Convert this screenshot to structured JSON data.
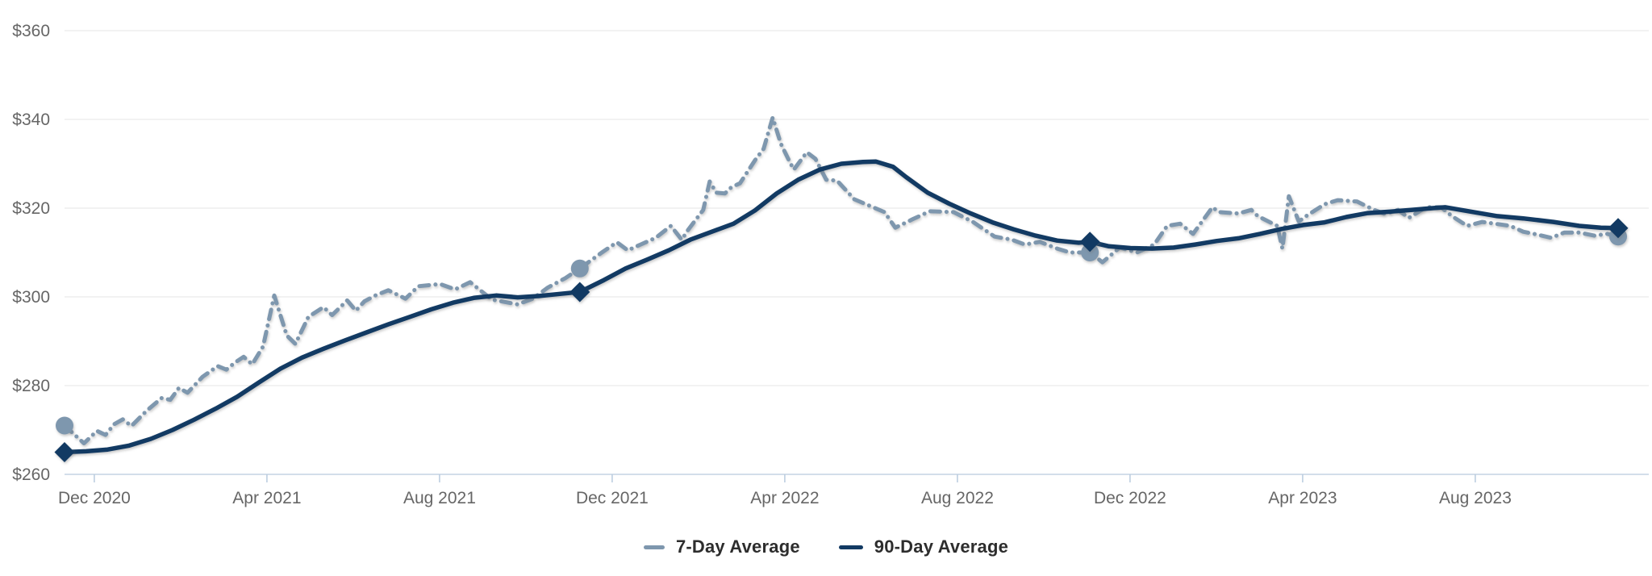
{
  "chart_data": {
    "type": "line",
    "title": "",
    "x_axis": {
      "unit": "date",
      "tick_labels": [
        "Dec 2020",
        "Apr 2021",
        "Aug 2021",
        "Dec 2021",
        "Apr 2022",
        "Aug 2022",
        "Dec 2022",
        "Apr 2023",
        "Aug 2023"
      ],
      "tick_month_offsets": [
        0.69,
        4.69,
        8.69,
        12.69,
        16.69,
        20.69,
        24.69,
        28.69,
        32.69
      ],
      "range_months": [
        0,
        36
      ]
    },
    "y_axis": {
      "unit": "USD",
      "min": 260,
      "max": 360,
      "step": 20,
      "tick_values": [
        260,
        280,
        300,
        320,
        340,
        360
      ],
      "tick_labels": [
        "$260",
        "$280",
        "$300",
        "$320",
        "$340",
        "$360"
      ]
    },
    "grid": "horizontal-only",
    "legend_position": "bottom-center",
    "colors": {
      "grid": "#e9e9e9",
      "axis": "#b9cbde",
      "tick_label": "#666666",
      "legend_text": "#2d2d2d",
      "background": "#ffffff",
      "series_7day": "#7e97ae",
      "series_90day": "#123a63"
    },
    "series": [
      {
        "name": "7-Day Average",
        "style": "dash-dot",
        "color": "#7e97ae",
        "marker": "circle",
        "marker_points": [
          [
            0,
            271.0
          ],
          [
            11.94,
            306.4
          ],
          [
            23.76,
            310.0
          ],
          [
            36,
            313.6
          ]
        ],
        "points": [
          [
            0,
            271.0
          ],
          [
            0.45,
            267.0
          ],
          [
            0.75,
            269.8
          ],
          [
            0.95,
            268.9
          ],
          [
            1.15,
            271.3
          ],
          [
            1.35,
            272.4
          ],
          [
            1.55,
            270.9
          ],
          [
            1.9,
            274.3
          ],
          [
            2.25,
            277.2
          ],
          [
            2.45,
            276.8
          ],
          [
            2.65,
            279.5
          ],
          [
            2.85,
            278.4
          ],
          [
            3.2,
            282.0
          ],
          [
            3.55,
            284.4
          ],
          [
            3.75,
            283.6
          ],
          [
            3.95,
            285.2
          ],
          [
            4.15,
            286.5
          ],
          [
            4.35,
            284.8
          ],
          [
            4.6,
            288.8
          ],
          [
            4.86,
            300.3
          ],
          [
            5.15,
            291.3
          ],
          [
            5.35,
            289.4
          ],
          [
            5.65,
            295.5
          ],
          [
            6,
            297.7
          ],
          [
            6.2,
            295.9
          ],
          [
            6.55,
            299.2
          ],
          [
            6.75,
            296.9
          ],
          [
            6.95,
            299.0
          ],
          [
            7.2,
            300.3
          ],
          [
            7.5,
            301.5
          ],
          [
            7.9,
            299.6
          ],
          [
            8.2,
            302.4
          ],
          [
            8.7,
            302.9
          ],
          [
            9.05,
            301.7
          ],
          [
            9.4,
            303.3
          ],
          [
            9.9,
            299.4
          ],
          [
            10.5,
            298.3
          ],
          [
            10.85,
            299.6
          ],
          [
            11.2,
            302.1
          ],
          [
            11.6,
            304.2
          ],
          [
            11.94,
            306.4
          ],
          [
            12.45,
            310.0
          ],
          [
            12.8,
            312.3
          ],
          [
            13.05,
            310.5
          ],
          [
            13.35,
            311.8
          ],
          [
            13.7,
            313.3
          ],
          [
            14.05,
            316.0
          ],
          [
            14.3,
            312.9
          ],
          [
            14.45,
            315.1
          ],
          [
            14.8,
            319.6
          ],
          [
            14.95,
            326.0
          ],
          [
            15.1,
            323.5
          ],
          [
            15.3,
            323.3
          ],
          [
            15.45,
            324.7
          ],
          [
            15.65,
            325.6
          ],
          [
            16,
            330.8
          ],
          [
            16.2,
            333.4
          ],
          [
            16.41,
            340.4
          ],
          [
            16.6,
            334.5
          ],
          [
            16.8,
            330.5
          ],
          [
            16.9,
            328.7
          ],
          [
            17,
            330.0
          ],
          [
            17.2,
            332.6
          ],
          [
            17.4,
            331.1
          ],
          [
            17.65,
            326.4
          ],
          [
            17.9,
            326.2
          ],
          [
            18.3,
            322.0
          ],
          [
            19,
            319.1
          ],
          [
            19.25,
            315.6
          ],
          [
            19.65,
            317.5
          ],
          [
            20.05,
            319.3
          ],
          [
            20.6,
            319.1
          ],
          [
            21.05,
            316.9
          ],
          [
            21.55,
            313.6
          ],
          [
            21.95,
            312.9
          ],
          [
            22.25,
            311.8
          ],
          [
            22.6,
            312.4
          ],
          [
            23,
            310.9
          ],
          [
            23.3,
            310.0
          ],
          [
            23.76,
            310.0
          ],
          [
            24.05,
            307.8
          ],
          [
            24.45,
            311.1
          ],
          [
            24.85,
            310.0
          ],
          [
            25.25,
            311.8
          ],
          [
            25.55,
            316.0
          ],
          [
            25.85,
            316.5
          ],
          [
            26.15,
            314.2
          ],
          [
            26.6,
            320.2
          ],
          [
            26.75,
            319.1
          ],
          [
            27.2,
            318.8
          ],
          [
            27.5,
            319.6
          ],
          [
            27.65,
            318.2
          ],
          [
            28.1,
            316.0
          ],
          [
            28.22,
            310.9
          ],
          [
            28.37,
            322.7
          ],
          [
            28.6,
            317.0
          ],
          [
            28.8,
            318.4
          ],
          [
            29.2,
            320.9
          ],
          [
            29.5,
            321.8
          ],
          [
            29.95,
            321.5
          ],
          [
            30.35,
            319.6
          ],
          [
            30.6,
            318.7
          ],
          [
            30.9,
            319.6
          ],
          [
            31.15,
            317.8
          ],
          [
            31.55,
            320.2
          ],
          [
            31.9,
            320.2
          ],
          [
            32.15,
            318.2
          ],
          [
            32.5,
            316.0
          ],
          [
            32.85,
            316.9
          ],
          [
            33.15,
            316.5
          ],
          [
            33.5,
            316.0
          ],
          [
            33.8,
            314.7
          ],
          [
            34.05,
            314.2
          ],
          [
            34.45,
            313.3
          ],
          [
            34.75,
            314.5
          ],
          [
            35.1,
            314.5
          ],
          [
            35.45,
            313.8
          ],
          [
            35.75,
            314.2
          ],
          [
            36,
            313.6
          ]
        ]
      },
      {
        "name": "90-Day Average",
        "style": "solid",
        "color": "#123a63",
        "marker": "diamond",
        "marker_points": [
          [
            0,
            265.0
          ],
          [
            11.94,
            301.1
          ],
          [
            23.76,
            312.4
          ],
          [
            36,
            315.5
          ]
        ],
        "points": [
          [
            0,
            265.0
          ],
          [
            0.5,
            265.2
          ],
          [
            1,
            265.6
          ],
          [
            1.5,
            266.5
          ],
          [
            2,
            268.0
          ],
          [
            2.5,
            270.0
          ],
          [
            3,
            272.3
          ],
          [
            3.5,
            274.8
          ],
          [
            4,
            277.5
          ],
          [
            4.5,
            280.7
          ],
          [
            5,
            283.8
          ],
          [
            5.5,
            286.3
          ],
          [
            6,
            288.3
          ],
          [
            6.5,
            290.2
          ],
          [
            7,
            292.0
          ],
          [
            7.5,
            293.8
          ],
          [
            8,
            295.5
          ],
          [
            8.5,
            297.2
          ],
          [
            9,
            298.7
          ],
          [
            9.5,
            299.8
          ],
          [
            10,
            300.3
          ],
          [
            10.5,
            299.9
          ],
          [
            11,
            300.2
          ],
          [
            11.5,
            300.7
          ],
          [
            11.94,
            301.1
          ],
          [
            12.5,
            303.8
          ],
          [
            13,
            306.4
          ],
          [
            13.5,
            308.4
          ],
          [
            14,
            310.5
          ],
          [
            14.5,
            312.9
          ],
          [
            15,
            314.7
          ],
          [
            15.5,
            316.5
          ],
          [
            16,
            319.5
          ],
          [
            16.5,
            323.3
          ],
          [
            17,
            326.4
          ],
          [
            17.5,
            328.7
          ],
          [
            18,
            330.0
          ],
          [
            18.5,
            330.4
          ],
          [
            18.8,
            330.5
          ],
          [
            19.2,
            329.3
          ],
          [
            19.5,
            327.0
          ],
          [
            20,
            323.5
          ],
          [
            20.5,
            321.0
          ],
          [
            21,
            318.8
          ],
          [
            21.5,
            316.8
          ],
          [
            22,
            315.2
          ],
          [
            22.5,
            313.8
          ],
          [
            23,
            312.7
          ],
          [
            23.5,
            312.2
          ],
          [
            23.76,
            312.4
          ],
          [
            24.2,
            311.4
          ],
          [
            24.7,
            311.0
          ],
          [
            25.2,
            310.9
          ],
          [
            25.7,
            311.1
          ],
          [
            26.2,
            311.8
          ],
          [
            26.7,
            312.6
          ],
          [
            27.2,
            313.2
          ],
          [
            27.7,
            314.2
          ],
          [
            28.2,
            315.3
          ],
          [
            28.7,
            316.2
          ],
          [
            29.2,
            316.8
          ],
          [
            29.7,
            318.0
          ],
          [
            30.2,
            318.9
          ],
          [
            30.7,
            319.2
          ],
          [
            31.2,
            319.6
          ],
          [
            31.7,
            320.0
          ],
          [
            32,
            320.2
          ],
          [
            32.6,
            319.2
          ],
          [
            33.2,
            318.2
          ],
          [
            33.8,
            317.7
          ],
          [
            34.5,
            316.9
          ],
          [
            35.1,
            316.0
          ],
          [
            35.6,
            315.6
          ],
          [
            36,
            315.5
          ]
        ]
      }
    ],
    "legend": {
      "items": [
        {
          "label": "7-Day Average"
        },
        {
          "label": "90-Day Average"
        }
      ]
    }
  }
}
